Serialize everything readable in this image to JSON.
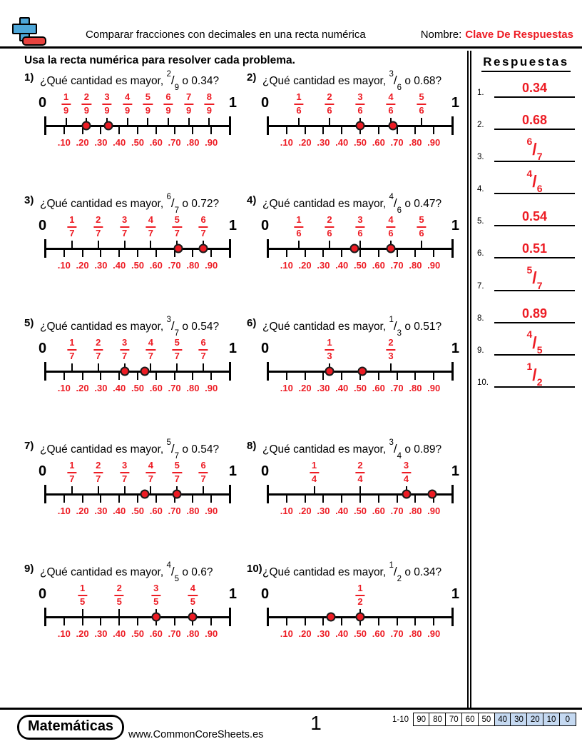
{
  "colors": {
    "accent_red": "#ed1c24",
    "logo_blue": "#4da7d9",
    "logo_red": "#e8433f",
    "score_shade": "#c5d9f1"
  },
  "header": {
    "title": "Comparar fracciones con decimales en una recta numérica",
    "name_label": "Nombre:",
    "name_value": "Clave De Respuestas",
    "instruction": "Usa la recta numérica para resolver cada problema."
  },
  "numberline": {
    "start_label": "0",
    "end_label": "1",
    "decimals": [
      ".10",
      ".20",
      ".30",
      ".40",
      ".50",
      ".60",
      ".70",
      ".80",
      ".90"
    ]
  },
  "problems": [
    {
      "num": "1)",
      "prefix": "¿Qué cantidad es mayor,",
      "frac_n": "2",
      "frac_d": "9",
      "suffix": "o 0.34?",
      "denominator": 9,
      "dots": [
        0.2222,
        0.34
      ]
    },
    {
      "num": "2)",
      "prefix": "¿Qué cantidad es mayor,",
      "frac_n": "3",
      "frac_d": "6",
      "suffix": "o 0.68?",
      "denominator": 6,
      "dots": [
        0.5,
        0.68
      ]
    },
    {
      "num": "3)",
      "prefix": "¿Qué cantidad es mayor,",
      "frac_n": "6",
      "frac_d": "7",
      "suffix": "o 0.72?",
      "denominator": 7,
      "dots": [
        0.72,
        0.8571
      ]
    },
    {
      "num": "4)",
      "prefix": "¿Qué cantidad es mayor,",
      "frac_n": "4",
      "frac_d": "6",
      "suffix": "o 0.47?",
      "denominator": 6,
      "dots": [
        0.47,
        0.6667
      ]
    },
    {
      "num": "5)",
      "prefix": "¿Qué cantidad es mayor,",
      "frac_n": "3",
      "frac_d": "7",
      "suffix": "o 0.54?",
      "denominator": 7,
      "dots": [
        0.4286,
        0.54
      ]
    },
    {
      "num": "6)",
      "prefix": "¿Qué cantidad es mayor,",
      "frac_n": "1",
      "frac_d": "3",
      "suffix": "o 0.51?",
      "denominator": 3,
      "dots": [
        0.3333,
        0.51
      ]
    },
    {
      "num": "7)",
      "prefix": "¿Qué cantidad es mayor,",
      "frac_n": "5",
      "frac_d": "7",
      "suffix": "o 0.54?",
      "denominator": 7,
      "dots": [
        0.54,
        0.7143
      ]
    },
    {
      "num": "8)",
      "prefix": "¿Qué cantidad es mayor,",
      "frac_n": "3",
      "frac_d": "4",
      "suffix": "o 0.89?",
      "denominator": 4,
      "dots": [
        0.75,
        0.89
      ]
    },
    {
      "num": "9)",
      "prefix": "¿Qué cantidad es mayor,",
      "frac_n": "4",
      "frac_d": "5",
      "suffix": "o 0.6?",
      "denominator": 5,
      "dots": [
        0.6,
        0.8
      ]
    },
    {
      "num": "10)",
      "prefix": "¿Qué cantidad es mayor,",
      "frac_n": "1",
      "frac_d": "2",
      "suffix": "o 0.34?",
      "denominator": 2,
      "dots": [
        0.34,
        0.5
      ]
    }
  ],
  "answers": {
    "title": "Respuestas",
    "items": [
      {
        "label": "1.",
        "decimal": "0.34"
      },
      {
        "label": "2.",
        "decimal": "0.68"
      },
      {
        "label": "3.",
        "frac_n": "6",
        "frac_d": "7"
      },
      {
        "label": "4.",
        "frac_n": "4",
        "frac_d": "6"
      },
      {
        "label": "5.",
        "decimal": "0.54"
      },
      {
        "label": "6.",
        "decimal": "0.51"
      },
      {
        "label": "7.",
        "frac_n": "5",
        "frac_d": "7"
      },
      {
        "label": "8.",
        "decimal": "0.89"
      },
      {
        "label": "9.",
        "frac_n": "4",
        "frac_d": "5"
      },
      {
        "label": "10.",
        "frac_n": "1",
        "frac_d": "2"
      }
    ]
  },
  "footer": {
    "brand": "Matemáticas",
    "site": "www.CommonCoreSheets.es",
    "page": "1",
    "score_range": "1-10",
    "score_cells": [
      "90",
      "80",
      "70",
      "60",
      "50",
      "40",
      "30",
      "20",
      "10",
      "0"
    ],
    "score_shaded_start": 5
  }
}
